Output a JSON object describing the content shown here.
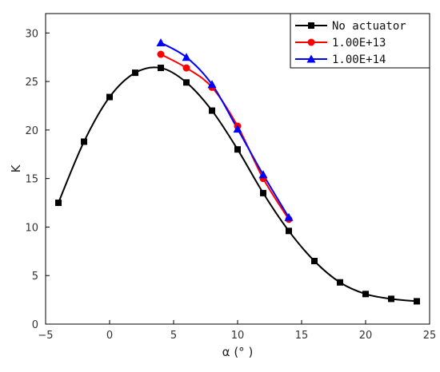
{
  "chart_data": {
    "type": "line",
    "title": "",
    "xlabel": "α (° )",
    "ylabel": "K",
    "xlim": [
      -5,
      25
    ],
    "ylim": [
      0,
      32
    ],
    "xticks": [
      -5,
      0,
      5,
      10,
      15,
      20,
      25
    ],
    "yticks": [
      0,
      5,
      10,
      15,
      20,
      25,
      30
    ],
    "xtick_labels": [
      "−5",
      "0",
      "5",
      "10",
      "15",
      "20",
      "25"
    ],
    "ytick_labels": [
      "0",
      "5",
      "10",
      "15",
      "20",
      "25",
      "30"
    ],
    "grid": false,
    "legend_position": "top-right",
    "series": [
      {
        "name": "No actuator",
        "color": "#000000",
        "marker": "square",
        "x": [
          -4,
          -2,
          0,
          2,
          4,
          6,
          8,
          10,
          12,
          14,
          16,
          18,
          20,
          22,
          24
        ],
        "y": [
          12.5,
          18.8,
          23.4,
          25.9,
          26.4,
          24.9,
          22.0,
          18.0,
          13.5,
          9.6,
          6.5,
          4.3,
          3.1,
          2.6,
          2.35
        ]
      },
      {
        "name": "1.00E+13",
        "color": "#ff0000",
        "marker": "circle",
        "x": [
          4,
          6,
          8,
          10,
          12,
          14
        ],
        "y": [
          27.8,
          26.4,
          24.4,
          20.4,
          15.0,
          10.8
        ]
      },
      {
        "name": "1.00E+14",
        "color": "#0000ff",
        "marker": "triangle",
        "x": [
          4,
          6,
          8,
          10,
          12,
          14
        ],
        "y": [
          29.0,
          27.5,
          24.7,
          20.1,
          15.4,
          11.0
        ]
      }
    ]
  }
}
